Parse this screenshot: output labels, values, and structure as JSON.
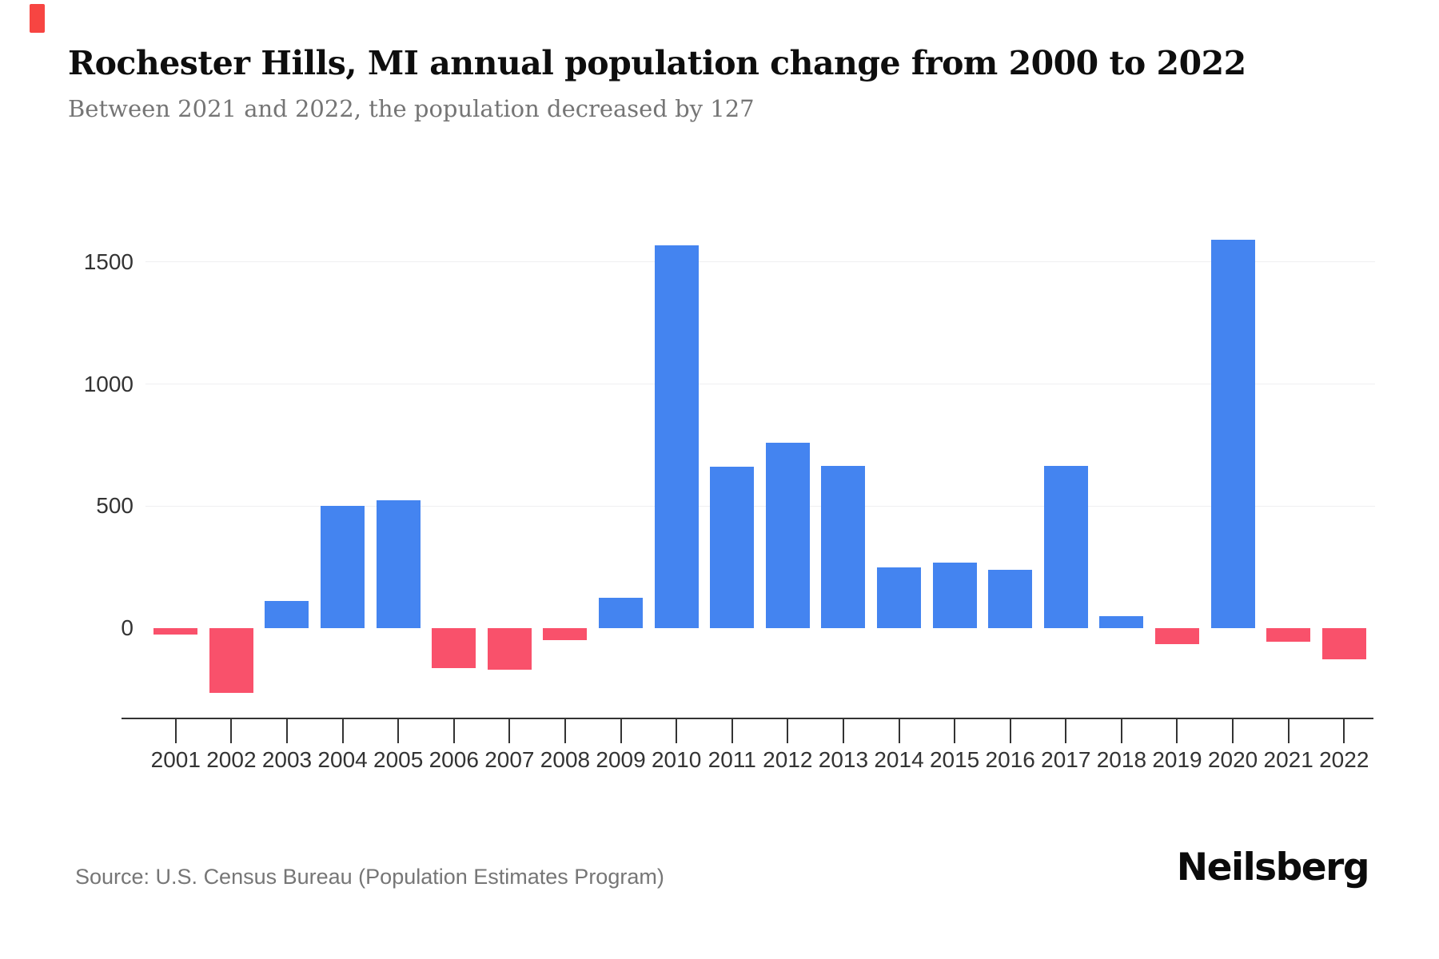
{
  "page": {
    "title": "Rochester Hills, MI annual population change from 2000 to 2022",
    "subtitle": "Between 2021 and 2022, the population decreased by 127",
    "source": "Source: U.S. Census Bureau (Population Estimates Program)",
    "brand": "Neilsberg"
  },
  "colors": {
    "positive": "#4484F0",
    "negative": "#F9516B",
    "gridline": "#EFEFF1",
    "axis": "#333333",
    "title": "#0E0E0E",
    "subtitle": "#757575",
    "source": "#767676",
    "brand": "#0B0B0B",
    "marker": "#F74542"
  },
  "chart_data": {
    "type": "bar",
    "title": "Rochester Hills, MI annual population change from 2000 to 2022",
    "subtitle": "Between 2021 and 2022, the population decreased by 127",
    "categories": [
      "2001",
      "2002",
      "2003",
      "2004",
      "2005",
      "2006",
      "2007",
      "2008",
      "2009",
      "2010",
      "2011",
      "2012",
      "2013",
      "2014",
      "2015",
      "2016",
      "2017",
      "2018",
      "2019",
      "2020",
      "2021",
      "2022"
    ],
    "values": [
      -25,
      -265,
      110,
      500,
      525,
      -165,
      -170,
      -50,
      125,
      1570,
      660,
      760,
      665,
      250,
      270,
      240,
      665,
      50,
      -65,
      1590,
      -55,
      -127
    ],
    "xlabel": "",
    "ylabel": "",
    "y_ticks": [
      0,
      500,
      1000,
      1500
    ],
    "ylim": [
      -370,
      1680
    ],
    "grid": "horizontal-only",
    "legend": false,
    "positive_color": "#4484F0",
    "negative_color": "#F9516B"
  }
}
